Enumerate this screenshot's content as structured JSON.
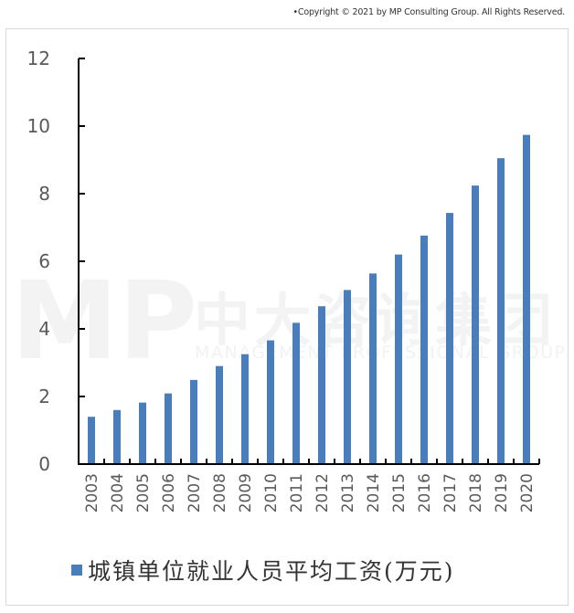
{
  "copyright": "•Copyright © 2021 by MP Consulting Group. All Rights Reserved.",
  "watermark": {
    "logo": "MP",
    "cn": "中大咨询集团",
    "en": "MANAGEMENT PROFESSIONAL GROUP"
  },
  "colors": {
    "bar": "#4a7ebb",
    "axis": "#000000",
    "tick_label": "#595959",
    "frame": "#d9d9d9"
  },
  "legend": {
    "label": "城镇单位就业人员平均工资(万元)"
  },
  "chart_data": {
    "type": "bar",
    "title": "",
    "xlabel": "",
    "ylabel": "",
    "ylim": [
      0,
      12
    ],
    "yticks": [
      0,
      2,
      4,
      6,
      8,
      10,
      12
    ],
    "grid": false,
    "legend_position": "bottom",
    "categories": [
      "2003",
      "2004",
      "2005",
      "2006",
      "2007",
      "2008",
      "2009",
      "2010",
      "2011",
      "2012",
      "2013",
      "2014",
      "2015",
      "2016",
      "2017",
      "2018",
      "2019",
      "2020"
    ],
    "series": [
      {
        "name": "城镇单位就业人员平均工资(万元)",
        "values": [
          1.4,
          1.6,
          1.82,
          2.09,
          2.49,
          2.9,
          3.25,
          3.66,
          4.18,
          4.67,
          5.15,
          5.64,
          6.2,
          6.76,
          7.43,
          8.24,
          9.05,
          9.74
        ]
      }
    ]
  }
}
